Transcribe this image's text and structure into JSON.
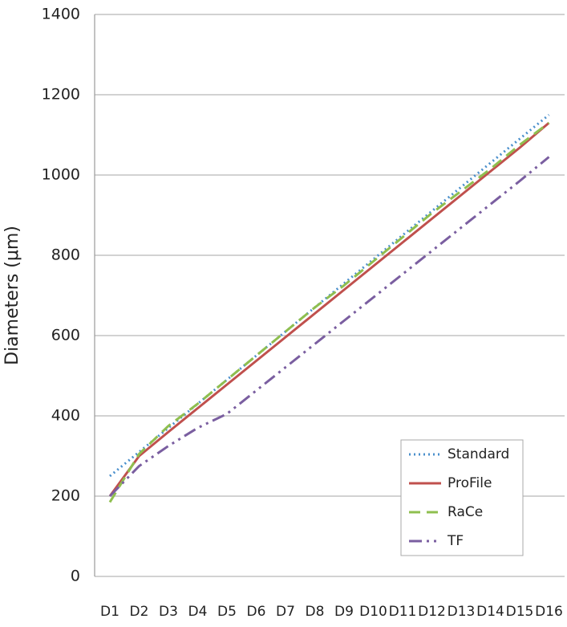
{
  "chart_data": {
    "type": "line",
    "y_label": "Diameters (μm)",
    "categories": [
      "D1",
      "D2",
      "D3",
      "D4",
      "D5",
      "D6",
      "D7",
      "D8",
      "D9",
      "D10",
      "D11",
      "D12",
      "D13",
      "D14",
      "D15",
      "D16"
    ],
    "series": [
      {
        "name": "Standard",
        "color": "#4a8fcc",
        "dash": "2 4",
        "values": [
          250,
          310,
          370,
          430,
          490,
          550,
          610,
          670,
          730,
          790,
          850,
          910,
          970,
          1030,
          1090,
          1150
        ]
      },
      {
        "name": "ProFile",
        "color": "#c0504d",
        "dash": "none",
        "values": [
          200,
          300,
          360,
          419,
          478,
          537,
          596,
          655,
          714,
          773,
          832,
          891,
          950,
          1009,
          1068,
          1130
        ]
      },
      {
        "name": "RaCe",
        "color": "#8fbf4f",
        "dash": "14 8",
        "values": [
          185,
          305,
          375,
          430,
          490,
          550,
          610,
          670,
          725,
          785,
          845,
          905,
          960,
          1015,
          1075,
          1130
        ]
      },
      {
        "name": "TF",
        "color": "#7a5ea0",
        "dash": "16 6 3 6 3 6",
        "values": [
          200,
          275,
          325,
          370,
          405,
          463,
          521,
          579,
          637,
          695,
          753,
          811,
          869,
          927,
          985,
          1045
        ]
      }
    ],
    "ylim": [
      0,
      1400
    ],
    "yticks": [
      0,
      200,
      400,
      600,
      800,
      1000,
      1200,
      1400
    ],
    "grid": true,
    "legend": "lower-right"
  }
}
